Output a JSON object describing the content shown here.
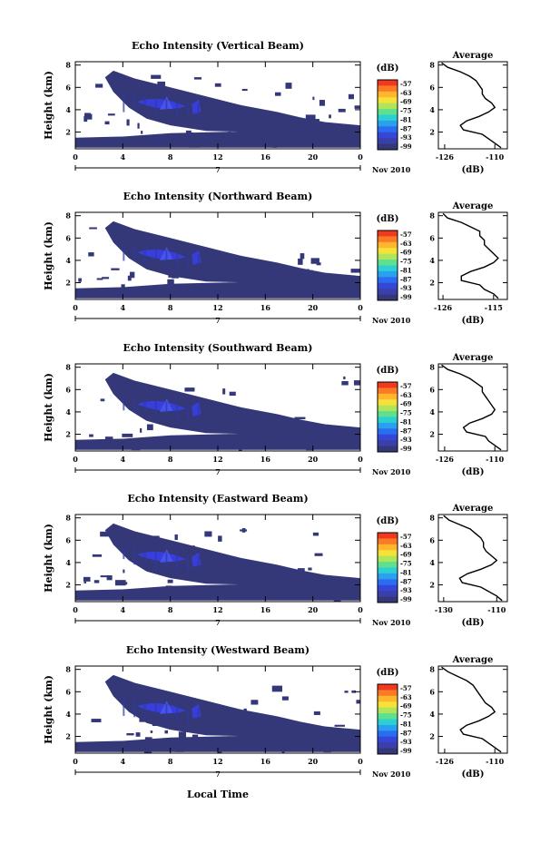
{
  "figure": {
    "xlabel": "Local Time",
    "date_day": "7",
    "date_suffix": "Nov 2010",
    "colorbar_unit": "(dB)",
    "colorbar_ticks": [
      "-57",
      "-63",
      "-69",
      "-75",
      "-81",
      "-87",
      "-93",
      "-99"
    ],
    "colorbar_colors": [
      "#f03a20",
      "#fb7a26",
      "#ffb52c",
      "#f5e13a",
      "#b0e45a",
      "#5ee08f",
      "#2cd0d2",
      "#2aa0ef",
      "#2b6df0",
      "#3547d6",
      "#3b3fa9",
      "#343878"
    ],
    "background_echo_color": "#343878",
    "strong_echo_color": "#3a3ff0",
    "avg_title": "Average",
    "avg_xlabel": "(dB)"
  },
  "chart_data": [
    {
      "type": "heatmap",
      "title": "Echo Intensity (Vertical Beam)",
      "ylabel": "Height (km)",
      "xticks": [
        "0",
        "4",
        "8",
        "12",
        "16",
        "20",
        "0"
      ],
      "yticks": [
        "2",
        "4",
        "6",
        "8"
      ],
      "xlim": [
        0,
        24
      ],
      "ylim": [
        0.5,
        8.3
      ],
      "clim": [
        -99,
        -57
      ],
      "average": {
        "title": "Average",
        "xlabel": "(dB)",
        "xticks": [
          "-126",
          "-110"
        ],
        "xlim": [
          -128,
          -106
        ],
        "yticks": [
          "2",
          "4",
          "6",
          "8"
        ],
        "ylim": [
          0.5,
          8.3
        ],
        "heights": [
          0.6,
          1.0,
          1.4,
          1.8,
          2.2,
          2.6,
          3.0,
          3.4,
          3.8,
          4.2,
          4.6,
          5.0,
          5.4,
          5.8,
          6.2,
          6.6,
          7.0,
          7.4,
          7.8,
          8.2
        ],
        "values": [
          -108,
          -110,
          -112,
          -114,
          -120,
          -121,
          -119,
          -115,
          -112,
          -110,
          -111,
          -113,
          -114,
          -114,
          -115,
          -116,
          -118,
          -121,
          -125,
          -127
        ]
      }
    },
    {
      "type": "heatmap",
      "title": "Echo Intensity (Northward Beam)",
      "ylabel": "Height (km)",
      "xticks": [
        "0",
        "4",
        "8",
        "12",
        "16",
        "20",
        "0"
      ],
      "yticks": [
        "2",
        "4",
        "6",
        "8"
      ],
      "xlim": [
        0,
        24
      ],
      "ylim": [
        0.5,
        8.3
      ],
      "clim": [
        -99,
        -57
      ],
      "average": {
        "title": "Average",
        "xlabel": "(dB)",
        "xticks": [
          "-126",
          "-115"
        ],
        "xlim": [
          -127,
          -112
        ],
        "yticks": [
          "2",
          "4",
          "6",
          "8"
        ],
        "ylim": [
          0.5,
          8.3
        ],
        "heights": [
          0.6,
          1.0,
          1.4,
          1.8,
          2.2,
          2.6,
          3.0,
          3.4,
          3.8,
          4.2,
          4.6,
          5.0,
          5.4,
          5.8,
          6.2,
          6.6,
          7.0,
          7.4,
          7.8,
          8.2
        ],
        "values": [
          -114,
          -115,
          -117,
          -118,
          -122,
          -122,
          -120,
          -117,
          -115,
          -114,
          -115,
          -116,
          -117,
          -117,
          -118,
          -118,
          -120,
          -122,
          -125,
          -126
        ]
      }
    },
    {
      "type": "heatmap",
      "title": "Echo Intensity (Southward Beam)",
      "ylabel": "Height (km)",
      "xticks": [
        "0",
        "4",
        "8",
        "12",
        "16",
        "20",
        "0"
      ],
      "yticks": [
        "2",
        "4",
        "6",
        "8"
      ],
      "xlim": [
        0,
        24
      ],
      "ylim": [
        0.5,
        8.3
      ],
      "clim": [
        -99,
        -57
      ],
      "average": {
        "title": "Average",
        "xlabel": "(dB)",
        "xticks": [
          "-126",
          "-110"
        ],
        "xlim": [
          -128,
          -106
        ],
        "yticks": [
          "2",
          "4",
          "6",
          "8"
        ],
        "ylim": [
          0.5,
          8.3
        ],
        "heights": [
          0.6,
          1.0,
          1.4,
          1.8,
          2.2,
          2.6,
          3.0,
          3.4,
          3.8,
          4.2,
          4.6,
          5.0,
          5.4,
          5.8,
          6.2,
          6.6,
          7.0,
          7.4,
          7.8,
          8.2
        ],
        "values": [
          -108,
          -110,
          -112,
          -113,
          -119,
          -120,
          -118,
          -114,
          -111,
          -110,
          -111,
          -112,
          -113,
          -114,
          -114,
          -116,
          -118,
          -121,
          -125,
          -127
        ]
      }
    },
    {
      "type": "heatmap",
      "title": "Echo Intensity (Eastward Beam)",
      "ylabel": "Height (km)",
      "xticks": [
        "0",
        "4",
        "8",
        "12",
        "16",
        "20",
        "0"
      ],
      "yticks": [
        "2",
        "4",
        "6",
        "8"
      ],
      "xlim": [
        0,
        24
      ],
      "ylim": [
        0.5,
        8.3
      ],
      "clim": [
        -99,
        -57
      ],
      "average": {
        "title": "Average",
        "xlabel": "(dB)",
        "xticks": [
          "-130",
          "-110"
        ],
        "xlim": [
          -132,
          -106
        ],
        "yticks": [
          "2",
          "4",
          "6",
          "8"
        ],
        "ylim": [
          0.5,
          8.3
        ],
        "heights": [
          0.6,
          1.0,
          1.4,
          1.8,
          2.2,
          2.6,
          3.0,
          3.4,
          3.8,
          4.2,
          4.6,
          5.0,
          5.4,
          5.8,
          6.2,
          6.6,
          7.0,
          7.4,
          7.8,
          8.2
        ],
        "values": [
          -108,
          -110,
          -113,
          -116,
          -123,
          -124,
          -121,
          -116,
          -112,
          -110,
          -112,
          -114,
          -115,
          -115,
          -116,
          -118,
          -120,
          -124,
          -128,
          -130
        ]
      }
    },
    {
      "type": "heatmap",
      "title": "Echo Intensity (Westward Beam)",
      "ylabel": "Height (km)",
      "xticks": [
        "0",
        "4",
        "8",
        "12",
        "16",
        "20",
        "0"
      ],
      "yticks": [
        "2",
        "4",
        "6",
        "8"
      ],
      "xlim": [
        0,
        24
      ],
      "ylim": [
        0.5,
        8.3
      ],
      "clim": [
        -99,
        -57
      ],
      "average": {
        "title": "Average",
        "xlabel": "(dB)",
        "xticks": [
          "-126",
          "-110"
        ],
        "xlim": [
          -128,
          -106
        ],
        "yticks": [
          "2",
          "4",
          "6",
          "8"
        ],
        "ylim": [
          0.5,
          8.3
        ],
        "heights": [
          0.6,
          1.0,
          1.4,
          1.8,
          2.2,
          2.6,
          3.0,
          3.4,
          3.8,
          4.2,
          4.6,
          5.0,
          5.4,
          5.8,
          6.2,
          6.6,
          7.0,
          7.4,
          7.8,
          8.2
        ],
        "values": [
          -108,
          -110,
          -112,
          -114,
          -120,
          -121,
          -119,
          -115,
          -112,
          -110,
          -111,
          -113,
          -114,
          -115,
          -116,
          -117,
          -119,
          -122,
          -125,
          -127
        ]
      }
    }
  ]
}
